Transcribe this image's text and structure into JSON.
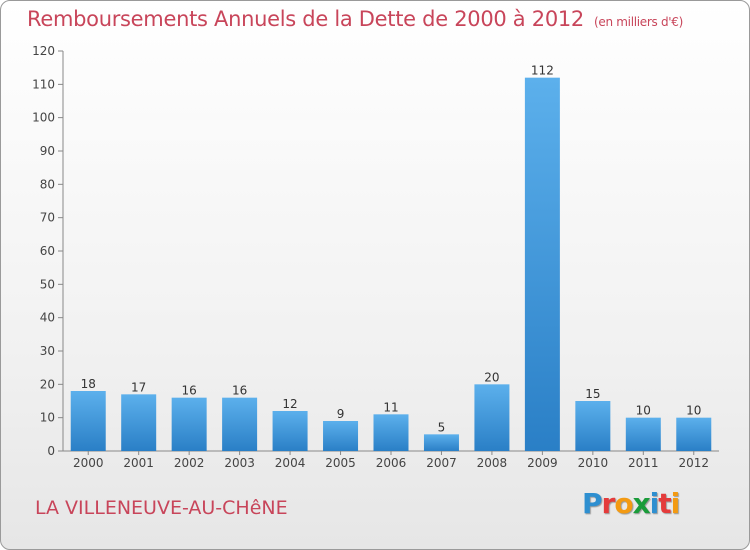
{
  "header": {
    "title": "Remboursements Annuels de la Dette de 2000 à 2012",
    "unit": "(en milliers d'€)"
  },
  "footer": {
    "commune": "LA VILLENEUVE-AU-CHêNE",
    "logo_letters": [
      "P",
      "r",
      "o",
      "x",
      "i",
      "t",
      "i"
    ],
    "logo_colors": [
      "#2e8fd0",
      "#e43b3b",
      "#f39a12",
      "#1a9c3a",
      "#2e8fd0",
      "#e43b3b",
      "#f39a12"
    ]
  },
  "chart_data": {
    "type": "bar",
    "categories": [
      "2000",
      "2001",
      "2002",
      "2003",
      "2004",
      "2005",
      "2006",
      "2007",
      "2008",
      "2009",
      "2010",
      "2011",
      "2012"
    ],
    "values": [
      18,
      17,
      16,
      16,
      12,
      9,
      11,
      5,
      20,
      112,
      15,
      10,
      10
    ],
    "ylim": [
      0,
      120
    ],
    "yticks": [
      0,
      10,
      20,
      30,
      40,
      50,
      60,
      70,
      80,
      90,
      100,
      110,
      120
    ],
    "grid": false,
    "bar_color": "#3d9ae0",
    "label_color": "#333333"
  }
}
